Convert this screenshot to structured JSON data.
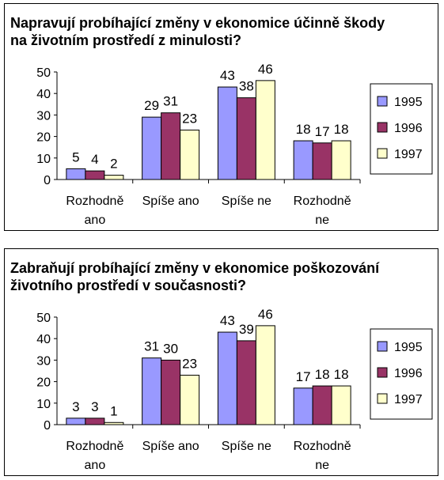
{
  "chart_data": [
    {
      "type": "bar",
      "title_lines": [
        "Napravují probíhající změny v ekonomice účinně škody",
        "na životním prostředí z minulosti?"
      ],
      "categories": [
        [
          "Rozhodně",
          "ano"
        ],
        [
          "Spíše ano"
        ],
        [
          "Spíše ne"
        ],
        [
          "Rozhodně",
          "ne"
        ]
      ],
      "ylim": [
        0,
        50
      ],
      "yticks": [
        0,
        10,
        20,
        30,
        40,
        50
      ],
      "grid": false,
      "legend_position": "right",
      "series": [
        {
          "name": "1995",
          "color": "#9999ff",
          "values": [
            5,
            29,
            43,
            18
          ]
        },
        {
          "name": "1996",
          "color": "#993366",
          "values": [
            4,
            31,
            38,
            17
          ]
        },
        {
          "name": "1997",
          "color": "#ffffcc",
          "values": [
            2,
            23,
            46,
            18
          ]
        }
      ]
    },
    {
      "type": "bar",
      "title_lines": [
        "Zabraňují probíhající změny v ekonomice poškozování",
        "životního prostředí v současnosti?"
      ],
      "categories": [
        [
          "Rozhodně",
          "ano"
        ],
        [
          "Spíše ano"
        ],
        [
          "Spíše ne"
        ],
        [
          "Rozhodně",
          "ne"
        ]
      ],
      "ylim": [
        0,
        50
      ],
      "yticks": [
        0,
        10,
        20,
        30,
        40,
        50
      ],
      "grid": false,
      "legend_position": "right",
      "series": [
        {
          "name": "1995",
          "color": "#9999ff",
          "values": [
            3,
            31,
            43,
            17
          ]
        },
        {
          "name": "1996",
          "color": "#993366",
          "values": [
            3,
            30,
            39,
            18
          ]
        },
        {
          "name": "1997",
          "color": "#ffffcc",
          "values": [
            1,
            23,
            46,
            18
          ]
        }
      ]
    }
  ]
}
